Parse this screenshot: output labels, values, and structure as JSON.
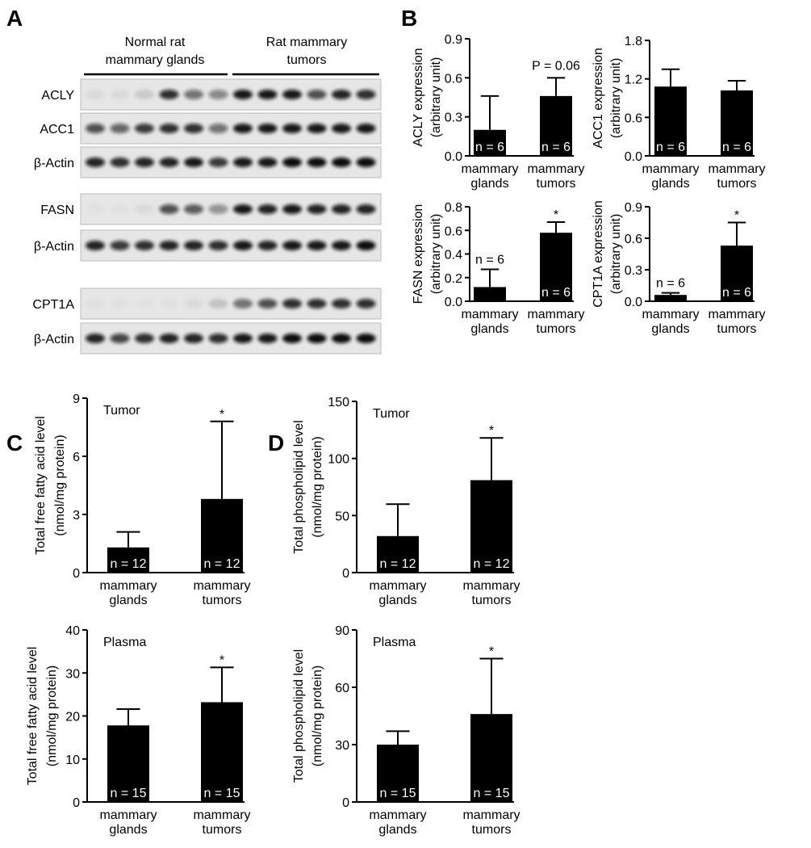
{
  "panels": [
    "A",
    "B",
    "C",
    "D"
  ],
  "blot": {
    "groups": [
      [
        "Normal rat",
        "mammary glands"
      ],
      [
        "Rat mammary",
        "tumors"
      ]
    ],
    "rows": [
      "ACLY",
      "ACC1",
      "β-Actin",
      "FASN",
      "β-Actin",
      "CPT1A",
      "β-Actin"
    ]
  },
  "chart_data": [
    {
      "type": "bar",
      "ylabel": [
        "ACLY expression",
        "(arbitrary unit)"
      ],
      "categories": [
        "mammary glands",
        "mammary tumors"
      ],
      "values": [
        0.2,
        0.46
      ],
      "errors": [
        0.26,
        0.14
      ],
      "bar_labels": [
        "n = 6",
        "n = 6"
      ],
      "bar_annotations": [
        null,
        "P = 0.06"
      ],
      "color": "#000000",
      "ylim": [
        0,
        0.9
      ],
      "yticks": [
        {
          "value": 0,
          "label": "0.0"
        },
        0.3,
        0.6,
        0.9
      ]
    },
    {
      "type": "bar",
      "ylabel": [
        "ACC1 expression",
        "(arbitrary unit)"
      ],
      "categories": [
        "mammary glands",
        "mammary tumors"
      ],
      "values": [
        1.08,
        1.02
      ],
      "errors": [
        0.27,
        0.15
      ],
      "bar_labels": [
        "n = 6",
        "n = 6"
      ],
      "color": "#000000",
      "ylim": [
        0,
        1.8
      ],
      "yticks": [
        {
          "value": 0,
          "label": "0.0"
        },
        0.6,
        1.2,
        1.8
      ]
    },
    {
      "type": "bar",
      "ylabel": [
        "FASN expression",
        "(arbitrary unit)"
      ],
      "categories": [
        "mammary glands",
        "mammary tumors"
      ],
      "values": [
        0.12,
        0.58
      ],
      "errors": [
        0.15,
        0.09
      ],
      "bar_labels": [
        "n = 6",
        "n = 6"
      ],
      "bar_annotations": [
        null,
        "*"
      ],
      "color": "#000000",
      "ylim": [
        0,
        0.8
      ],
      "yticks": [
        {
          "value": 0,
          "label": "0.0"
        },
        0.2,
        0.4,
        0.6,
        0.8
      ]
    },
    {
      "type": "bar",
      "ylabel": [
        "CPT1A expression",
        "(arbitrary unit)"
      ],
      "categories": [
        "mammary glands",
        "mammary tumors"
      ],
      "values": [
        0.06,
        0.53
      ],
      "errors": [
        0.02,
        0.22
      ],
      "bar_labels": [
        "n = 6",
        "n = 6"
      ],
      "bar_annotations": [
        null,
        "*"
      ],
      "color": "#000000",
      "ylim": [
        0,
        0.9
      ],
      "yticks": [
        {
          "value": 0,
          "label": "0.0"
        },
        0.3,
        0.6,
        0.9
      ]
    },
    {
      "type": "bar",
      "inset_label": "Tumor",
      "ylabel": [
        "Total free fatty acid level",
        "(nmol/mg protein)"
      ],
      "categories": [
        "mammary glands",
        "mammary tumors"
      ],
      "values": [
        1.3,
        3.8
      ],
      "errors": [
        0.8,
        4.0
      ],
      "bar_labels": [
        "n = 12",
        "n = 12"
      ],
      "bar_annotations": [
        null,
        "*"
      ],
      "color": "#000000",
      "ylim": [
        0,
        9
      ],
      "yticks": [
        0,
        3,
        6,
        9
      ]
    },
    {
      "type": "bar",
      "inset_label": "Plasma",
      "ylabel": [
        "Total free fatty acid level",
        "(nmol/mg protein)"
      ],
      "categories": [
        "mammary glands",
        "mammary tumors"
      ],
      "values": [
        17.8,
        23.2
      ],
      "errors": [
        3.8,
        8.1
      ],
      "bar_labels": [
        "n = 15",
        "n = 15"
      ],
      "bar_annotations": [
        null,
        "*"
      ],
      "color": "#000000",
      "ylim": [
        0,
        40
      ],
      "yticks": [
        0,
        10,
        20,
        30,
        40
      ]
    },
    {
      "type": "bar",
      "inset_label": "Tumor",
      "ylabel": [
        "Total phospholipid level",
        "(nmol/mg protein)"
      ],
      "categories": [
        "mammary glands",
        "mammary tumors"
      ],
      "values": [
        32,
        81
      ],
      "errors": [
        28,
        37
      ],
      "bar_labels": [
        "n = 12",
        "n = 12"
      ],
      "bar_annotations": [
        null,
        "*"
      ],
      "color": "#000000",
      "ylim": [
        0,
        150
      ],
      "yticks": [
        0,
        50,
        100,
        150
      ]
    },
    {
      "type": "bar",
      "inset_label": "Plasma",
      "ylabel": [
        "Total phospholipid level",
        "(nmol/mg protein)"
      ],
      "categories": [
        "mammary glands",
        "mammary tumors"
      ],
      "values": [
        30,
        46
      ],
      "errors": [
        7,
        29
      ],
      "bar_labels": [
        "n = 15",
        "n = 15"
      ],
      "bar_annotations": [
        null,
        "*"
      ],
      "color": "#000000",
      "ylim": [
        0,
        90
      ],
      "yticks": [
        0,
        30,
        60,
        90
      ]
    }
  ]
}
